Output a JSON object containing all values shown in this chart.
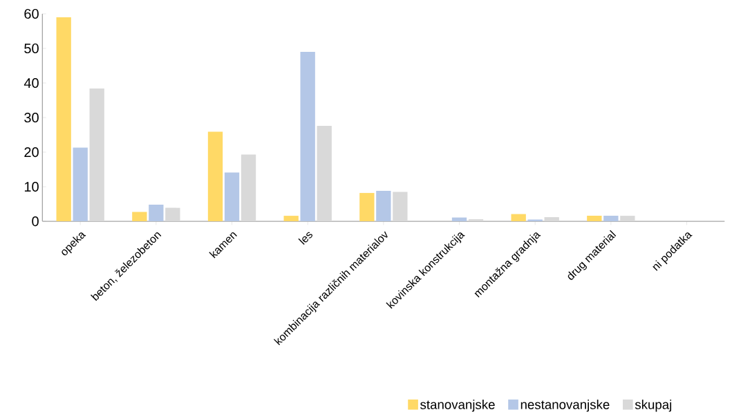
{
  "chart_data": {
    "type": "bar",
    "categories": [
      "opeka",
      "beton, železobeton",
      "kamen",
      "les",
      "kombinacija različnih materialov",
      "kovinska konstrukcija",
      "montažna gradnja",
      "drug material",
      "ni podatka"
    ],
    "series": [
      {
        "name": "stanovanjske",
        "color": "#ffd966",
        "values": [
          59,
          2.7,
          25.9,
          1.6,
          8.2,
          0,
          2.1,
          1.6,
          0
        ]
      },
      {
        "name": "nestanovanjske",
        "color": "#b4c7e7",
        "values": [
          21.3,
          4.8,
          14.1,
          49,
          8.8,
          1.1,
          0.5,
          1.6,
          0
        ]
      },
      {
        "name": "skupaj",
        "color": "#d9d9d9",
        "values": [
          38.4,
          3.9,
          19.3,
          27.6,
          8.5,
          0.6,
          1.2,
          1.6,
          0
        ]
      }
    ],
    "ylim": [
      0,
      60
    ],
    "yticks": [
      0,
      10,
      20,
      30,
      40,
      50,
      60
    ],
    "grid": false,
    "legend": "bottom"
  }
}
